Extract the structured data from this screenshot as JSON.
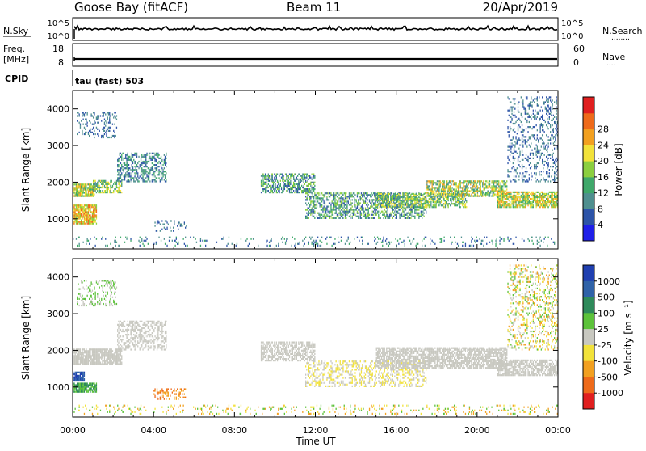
{
  "header": {
    "station": "Goose Bay (fitACF)",
    "beam": "Beam 11",
    "date": "20/Apr/2019"
  },
  "strip_labels": {
    "nsky": "N.Sky",
    "nsearch": "N.Search",
    "nsearch_dots": "........",
    "freq_line1": "Freq.",
    "freq_line2": "[MHz]",
    "nave": "Nave",
    "nave_dots": "....",
    "cpid": "CPID",
    "cpid_value": "tau (fast) 503",
    "noise_ticks_left": [
      "10^5",
      "10^0"
    ],
    "noise_ticks_right": [
      "10^5",
      "10^0"
    ],
    "freq_ticks_left": [
      "18",
      "8"
    ],
    "nave_ticks_right": [
      "60",
      "0"
    ]
  },
  "chart_data": [
    {
      "type": "heatmap",
      "name": "power",
      "ylabel": "Slant Range [km]",
      "ylim": [
        180,
        4500
      ],
      "yticks": [
        1000,
        2000,
        3000,
        4000
      ],
      "xlim": [
        0,
        24
      ],
      "colorbar": {
        "label": "Power [dB]",
        "ticks": [
          "4",
          "8",
          "12",
          "16",
          "20",
          "24",
          "28"
        ],
        "colors": [
          "#1f1fe8",
          "#2d54a8",
          "#4f8f8f",
          "#3fa86a",
          "#8ccf3f",
          "#f2e23a",
          "#f2a020",
          "#ee6a1a",
          "#e01f1f"
        ]
      },
      "bands": [
        {
          "t0": 0.0,
          "t1": 1.1,
          "r0": 1600,
          "r1": 1950,
          "density": 0.85,
          "levels": [
            3,
            4,
            5,
            6
          ]
        },
        {
          "t0": 1.0,
          "t1": 2.4,
          "r0": 1700,
          "r1": 2050,
          "density": 0.6,
          "levels": [
            2,
            3,
            4,
            5
          ]
        },
        {
          "t0": 0.0,
          "t1": 1.2,
          "r0": 850,
          "r1": 1350,
          "density": 0.85,
          "levels": [
            4,
            5,
            6,
            7
          ]
        },
        {
          "t0": 2.2,
          "t1": 4.6,
          "r0": 2000,
          "r1": 2800,
          "density": 0.45,
          "levels": [
            1,
            2,
            3
          ]
        },
        {
          "t0": 0.2,
          "t1": 2.2,
          "r0": 3200,
          "r1": 3900,
          "density": 0.25,
          "levels": [
            1,
            2
          ]
        },
        {
          "t0": 4.0,
          "t1": 5.6,
          "r0": 650,
          "r1": 950,
          "density": 0.2,
          "levels": [
            1,
            2
          ]
        },
        {
          "t0": 9.3,
          "t1": 12.0,
          "r0": 1700,
          "r1": 2200,
          "density": 0.55,
          "levels": [
            1,
            2,
            3,
            4
          ]
        },
        {
          "t0": 11.5,
          "t1": 17.5,
          "r0": 1000,
          "r1": 1700,
          "density": 0.5,
          "levels": [
            1,
            2,
            3,
            4
          ]
        },
        {
          "t0": 15.0,
          "t1": 19.5,
          "r0": 1300,
          "r1": 1700,
          "density": 0.6,
          "levels": [
            2,
            3,
            4,
            5
          ]
        },
        {
          "t0": 17.5,
          "t1": 21.5,
          "r0": 1600,
          "r1": 2050,
          "density": 0.65,
          "levels": [
            2,
            3,
            4,
            5,
            6
          ]
        },
        {
          "t0": 21.0,
          "t1": 24.0,
          "r0": 1300,
          "r1": 1750,
          "density": 0.75,
          "levels": [
            3,
            4,
            5,
            6
          ]
        },
        {
          "t0": 21.5,
          "t1": 24.0,
          "r0": 2000,
          "r1": 4300,
          "density": 0.22,
          "levels": [
            1,
            2
          ]
        },
        {
          "t0": 0.0,
          "t1": 24.0,
          "r0": 250,
          "r1": 500,
          "density": 0.12,
          "levels": [
            1,
            2,
            3
          ]
        }
      ]
    },
    {
      "type": "heatmap",
      "name": "velocity",
      "ylabel": "Slant Range [km]",
      "ylim": [
        180,
        4500
      ],
      "yticks": [
        1000,
        2000,
        3000,
        4000
      ],
      "xlim": [
        0,
        24
      ],
      "xticks": [
        "00:00",
        "04:00",
        "08:00",
        "12:00",
        "16:00",
        "20:00",
        "00:00"
      ],
      "xlabel": "Time UT",
      "colorbar": {
        "label": "Velocity [m s⁻¹]",
        "ticks": [
          "1000",
          "500",
          "100",
          "25",
          "-25",
          "-100",
          "-500",
          "-1000"
        ],
        "colors": [
          "#1f3fb0",
          "#2f62a8",
          "#2e8a5a",
          "#5cc23a",
          "#c8c8c0",
          "#f2e23a",
          "#f2a020",
          "#ee6a1a",
          "#e01f1f"
        ]
      },
      "bands": [
        {
          "t0": 0.0,
          "t1": 2.4,
          "r0": 1600,
          "r1": 2050,
          "density": 0.85,
          "levels": [
            4
          ]
        },
        {
          "t0": 2.2,
          "t1": 4.6,
          "r0": 2000,
          "r1": 2800,
          "density": 0.45,
          "levels": [
            4
          ]
        },
        {
          "t0": 0.2,
          "t1": 2.2,
          "r0": 3200,
          "r1": 3900,
          "density": 0.25,
          "levels": [
            4,
            3
          ]
        },
        {
          "t0": 0.0,
          "t1": 1.2,
          "r0": 850,
          "r1": 1100,
          "density": 0.9,
          "levels": [
            2,
            3
          ]
        },
        {
          "t0": 0.0,
          "t1": 0.6,
          "r0": 1150,
          "r1": 1400,
          "density": 0.9,
          "levels": [
            0,
            1
          ]
        },
        {
          "t0": 4.0,
          "t1": 5.6,
          "r0": 650,
          "r1": 950,
          "density": 0.3,
          "levels": [
            6,
            7
          ]
        },
        {
          "t0": 9.3,
          "t1": 12.0,
          "r0": 1700,
          "r1": 2200,
          "density": 0.6,
          "levels": [
            4
          ]
        },
        {
          "t0": 11.5,
          "t1": 17.5,
          "r0": 1000,
          "r1": 1700,
          "density": 0.35,
          "levels": [
            4,
            5
          ]
        },
        {
          "t0": 15.0,
          "t1": 21.5,
          "r0": 1500,
          "r1": 2050,
          "density": 0.7,
          "levels": [
            4
          ]
        },
        {
          "t0": 21.0,
          "t1": 24.0,
          "r0": 1300,
          "r1": 1750,
          "density": 0.7,
          "levels": [
            4
          ]
        },
        {
          "t0": 21.5,
          "t1": 24.0,
          "r0": 2000,
          "r1": 4300,
          "density": 0.25,
          "levels": [
            4,
            5,
            6,
            3
          ]
        },
        {
          "t0": 0.0,
          "t1": 24.0,
          "r0": 250,
          "r1": 500,
          "density": 0.12,
          "levels": [
            5,
            6,
            3
          ]
        }
      ]
    }
  ]
}
